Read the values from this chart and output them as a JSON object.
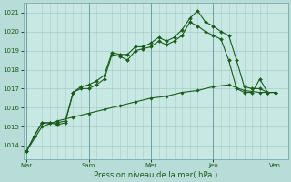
{
  "background_color": "#b8dcd8",
  "plot_bg_color": "#c8e8e4",
  "grid_color": "#a8ccc8",
  "line_color": "#1a5c1a",
  "marker_color": "#1a5c1a",
  "xlabel": "Pression niveau de la mer( hPa )",
  "ylim": [
    1013.3,
    1021.5
  ],
  "yticks": [
    1014,
    1015,
    1016,
    1017,
    1018,
    1019,
    1020,
    1021
  ],
  "day_labels": [
    "Mar",
    "Sam",
    "Mer",
    "Jeu",
    "Ven"
  ],
  "day_positions": [
    0,
    4,
    8,
    12,
    16
  ],
  "line1_x": [
    0.0,
    0.5,
    1.0,
    1.5,
    2.0,
    2.5,
    3.0,
    3.5,
    4.0,
    4.5,
    5.0,
    5.5,
    6.0,
    6.5,
    7.0,
    7.5,
    8.0,
    8.5,
    9.0,
    9.5,
    10.0,
    10.5,
    11.0,
    11.5,
    12.0,
    12.5,
    13.0,
    13.5,
    14.0,
    14.5,
    15.0,
    15.5,
    16.0
  ],
  "line1_y": [
    1013.7,
    1014.5,
    1015.2,
    1015.2,
    1015.1,
    1015.2,
    1016.8,
    1017.0,
    1017.0,
    1017.2,
    1017.5,
    1018.8,
    1018.7,
    1018.5,
    1019.0,
    1019.1,
    1019.2,
    1019.5,
    1019.3,
    1019.5,
    1019.8,
    1020.5,
    1020.3,
    1020.0,
    1019.8,
    1019.6,
    1018.5,
    1017.0,
    1016.8,
    1016.8,
    1017.5,
    1016.8,
    1016.8
  ],
  "line2_x": [
    0.0,
    0.5,
    1.0,
    1.5,
    2.0,
    2.5,
    3.0,
    3.5,
    4.0,
    4.5,
    5.0,
    5.5,
    6.0,
    6.5,
    7.0,
    7.5,
    8.0,
    8.5,
    9.0,
    9.5,
    10.0,
    10.5,
    11.0,
    11.5,
    12.0,
    12.5,
    13.0,
    13.5,
    14.0,
    14.5,
    15.0,
    15.5,
    16.0
  ],
  "line2_y": [
    1013.7,
    1014.5,
    1015.2,
    1015.2,
    1015.2,
    1015.3,
    1016.8,
    1017.1,
    1017.2,
    1017.4,
    1017.7,
    1018.9,
    1018.8,
    1018.8,
    1019.2,
    1019.2,
    1019.4,
    1019.7,
    1019.5,
    1019.7,
    1020.1,
    1020.7,
    1021.1,
    1020.5,
    1020.3,
    1020.0,
    1019.8,
    1018.5,
    1017.1,
    1017.0,
    1017.0,
    1016.8,
    1016.8
  ],
  "line3_x": [
    0.0,
    1.0,
    2.0,
    3.0,
    4.0,
    5.0,
    6.0,
    7.0,
    8.0,
    9.0,
    10.0,
    11.0,
    12.0,
    13.0,
    14.0,
    15.0,
    16.0
  ],
  "line3_y": [
    1013.7,
    1015.0,
    1015.3,
    1015.5,
    1015.7,
    1015.9,
    1016.1,
    1016.3,
    1016.5,
    1016.6,
    1016.8,
    1016.9,
    1017.1,
    1017.2,
    1016.9,
    1016.8,
    1016.8
  ]
}
